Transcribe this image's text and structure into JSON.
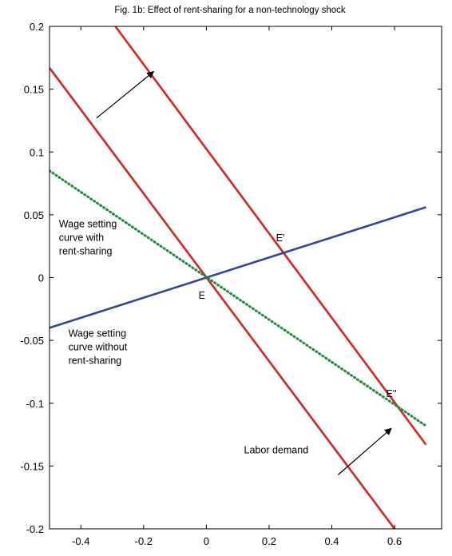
{
  "chart_data": {
    "type": "line",
    "title": "Fig. 1b: Effect of rent-sharing for a non-technology shock",
    "xlabel": "",
    "ylabel": "",
    "xlim": [
      -0.5,
      0.75
    ],
    "ylim": [
      -0.2,
      0.2
    ],
    "xticks": [
      -0.4,
      -0.2,
      0,
      0.2,
      0.4,
      0.6
    ],
    "xtick_labels": [
      "-0.4",
      "-0.2",
      "0",
      "0.2",
      "0.4",
      "0.6"
    ],
    "yticks": [
      -0.2,
      -0.15,
      -0.1,
      -0.05,
      0,
      0.05,
      0.1,
      0.15,
      0.2
    ],
    "ytick_labels": [
      "-0.2",
      "-0.15",
      "-0.1",
      "-0.05",
      "0",
      "0.05",
      "0.1",
      "0.15",
      "0.2"
    ],
    "grid": false,
    "series": [
      {
        "key": "labor-demand-initial",
        "color": "#dd2222",
        "style": "solid",
        "x": [
          -0.5,
          0.6
        ],
        "y": [
          0.167,
          -0.2
        ]
      },
      {
        "key": "labor-demand-shifted",
        "color": "#dd2222",
        "style": "solid",
        "x": [
          -0.29,
          0.7
        ],
        "y": [
          0.2,
          -0.133
        ]
      },
      {
        "key": "wage-setting-with-rent-sharing",
        "color": "#34469a",
        "style": "solid",
        "x": [
          -0.5,
          0.7
        ],
        "y": [
          -0.04,
          0.056
        ]
      },
      {
        "key": "wage-setting-without-rent-sharing",
        "color": "#1f8a3c",
        "style": "dotted",
        "x": [
          -0.5,
          0.7
        ],
        "y": [
          0.085,
          -0.118
        ]
      }
    ],
    "annotations": [
      {
        "key": "label-wage-with",
        "lines": [
          "Wage setting",
          "curve with",
          "rent-sharing"
        ],
        "x": -0.47,
        "y": 0.04
      },
      {
        "key": "label-wage-without",
        "lines": [
          "Wage setting",
          "curve without",
          "rent-sharing"
        ],
        "x": -0.44,
        "y": -0.047
      },
      {
        "key": "label-labor-demand",
        "lines": [
          "Labor demand"
        ],
        "x": 0.12,
        "y": -0.14
      },
      {
        "key": "point-E",
        "lines": [
          "E"
        ],
        "x": -0.025,
        "y": -0.017
      },
      {
        "key": "point-E-prime",
        "lines": [
          "E'"
        ],
        "x": 0.222,
        "y": 0.029
      },
      {
        "key": "point-E-double-prime",
        "lines": [
          "E''"
        ],
        "x": 0.573,
        "y": -0.095
      }
    ],
    "arrows": [
      {
        "key": "arrow-shift-upper",
        "from": [
          -0.35,
          0.127
        ],
        "to": [
          -0.168,
          0.164
        ]
      },
      {
        "key": "arrow-shift-lower",
        "from": [
          0.42,
          -0.157
        ],
        "to": [
          0.59,
          -0.12
        ]
      }
    ]
  }
}
